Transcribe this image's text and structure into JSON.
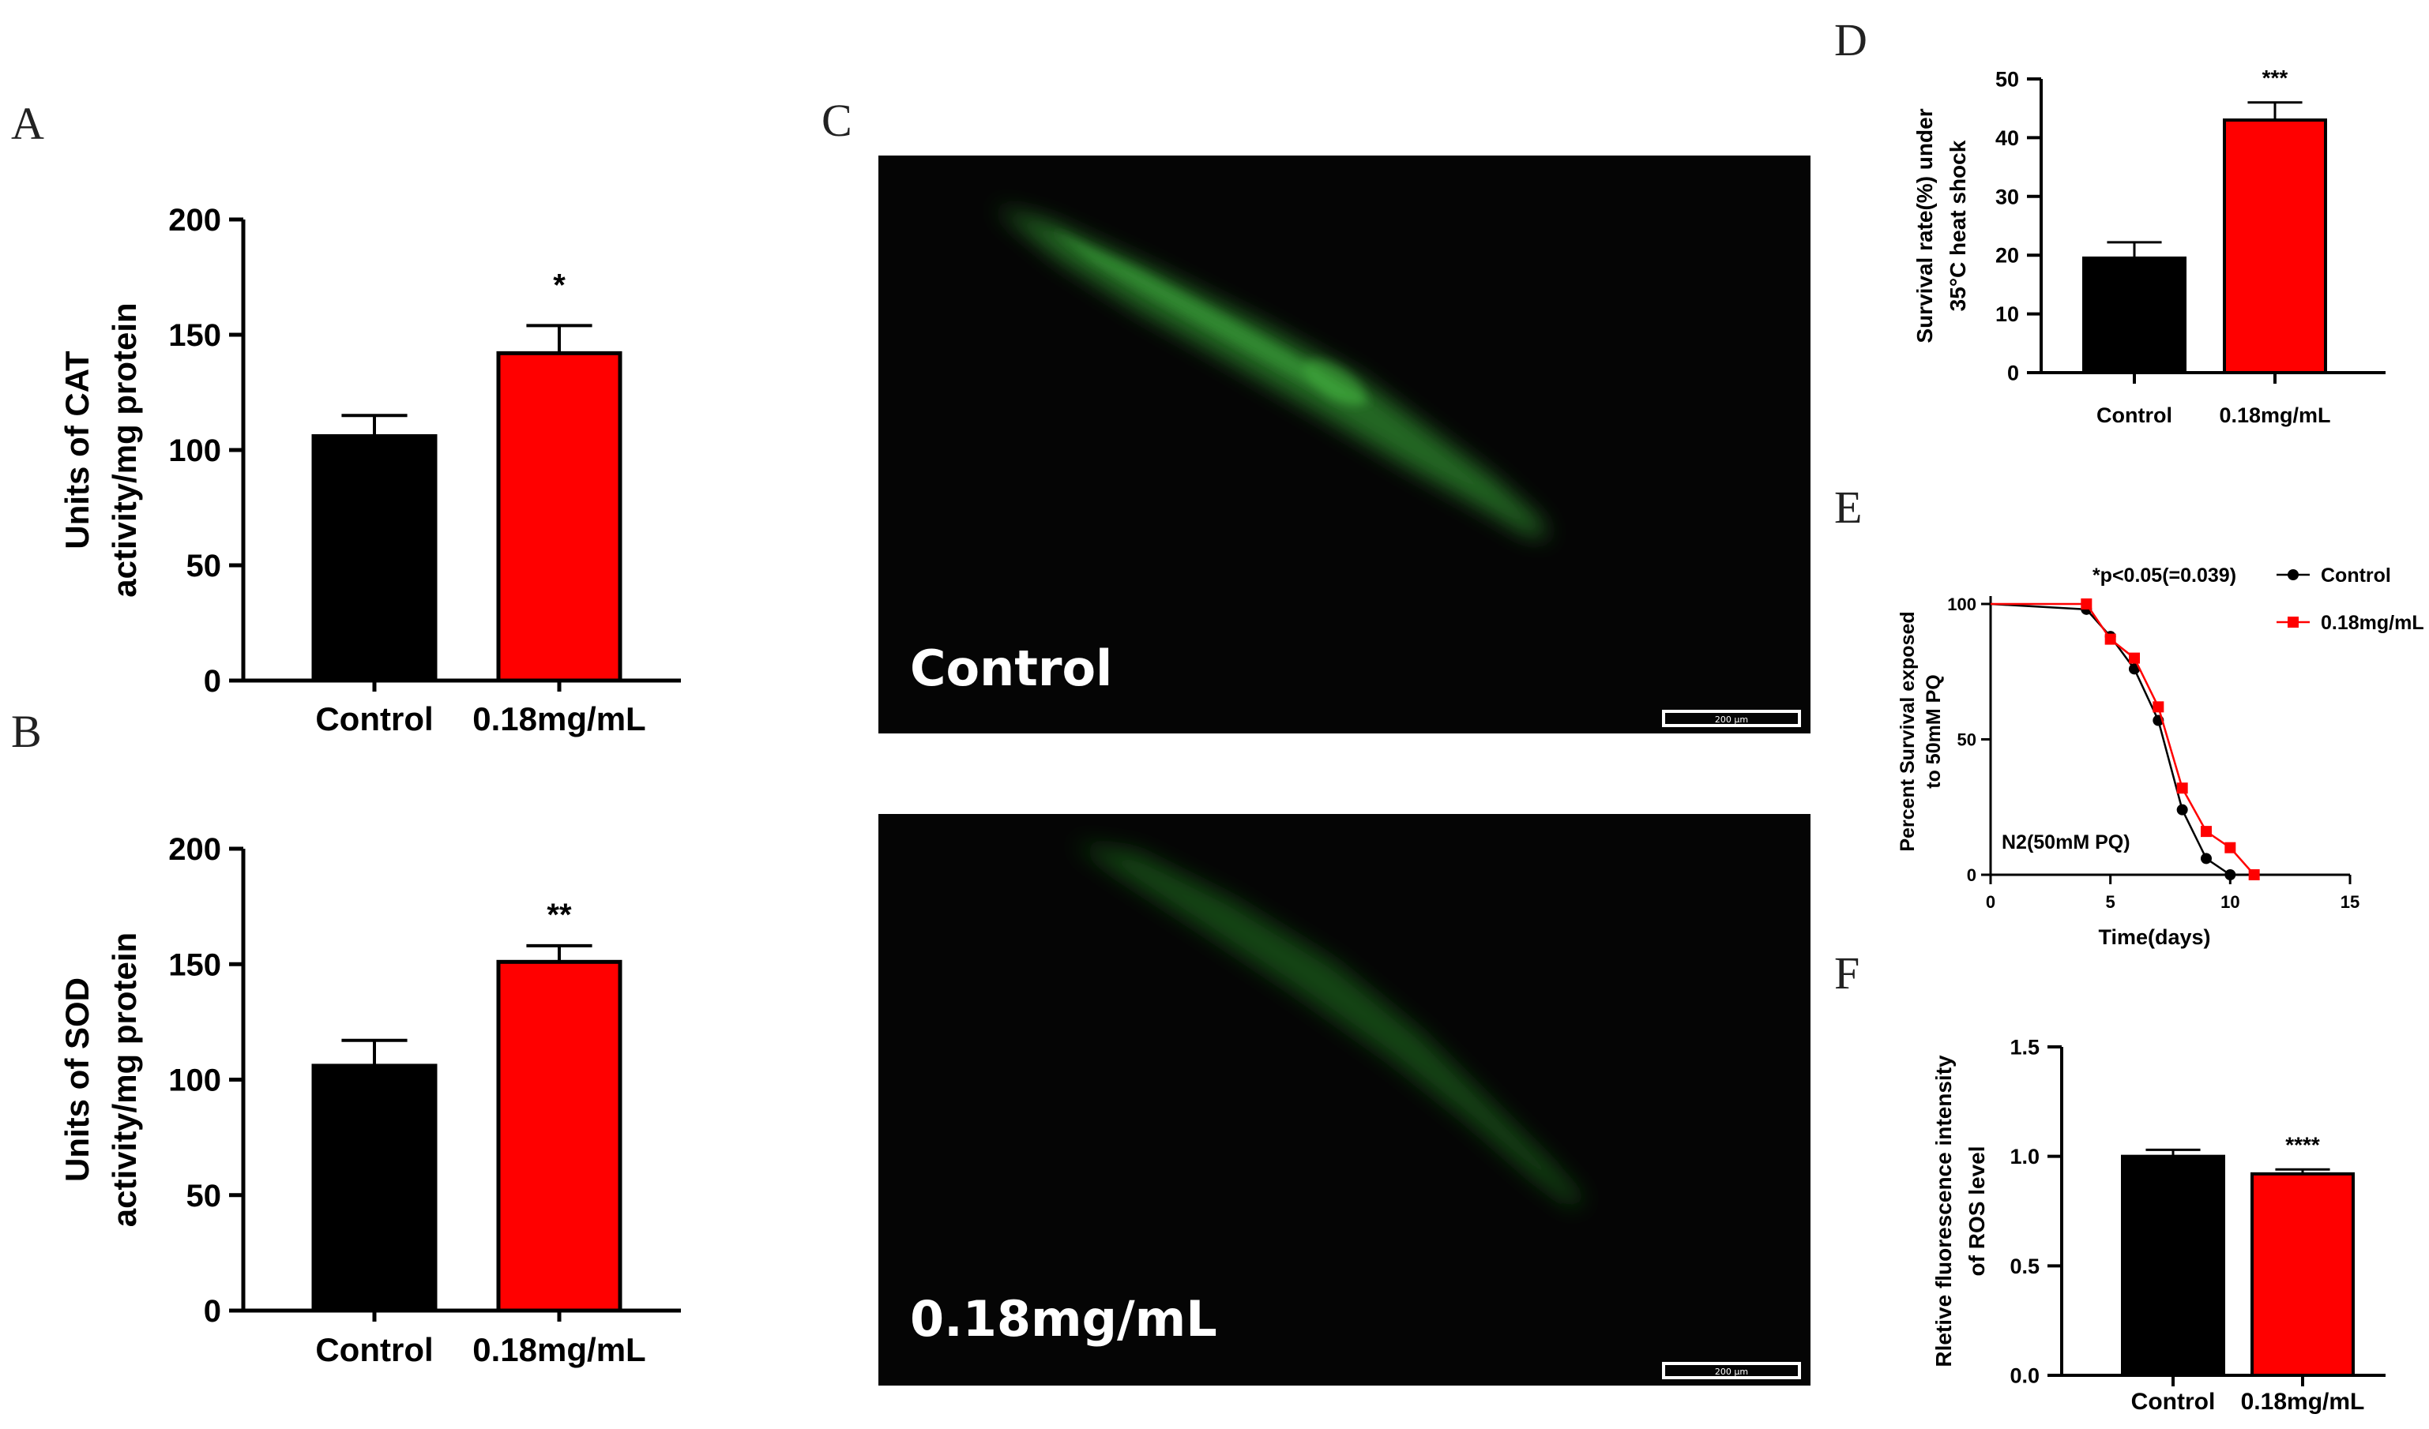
{
  "panels": {
    "A": "A",
    "B": "B",
    "C": "C",
    "D": "D",
    "E": "E",
    "F": "F"
  },
  "micrographs": {
    "top_label": "Control",
    "bottom_label": "0.18mg/mL",
    "scale_bar_text": "200 μm",
    "fluorescence_color": "#2f8a2c",
    "background_color": "#050505"
  },
  "chart_data": [
    {
      "id": "A",
      "type": "bar",
      "categories": [
        "Control",
        "0.18mg/mL"
      ],
      "values": [
        106,
        142
      ],
      "errors": [
        9,
        12
      ],
      "colors": [
        "#000000",
        "#ff0000"
      ],
      "significance": "*",
      "ylabel": [
        "Units of CAT",
        "activity/mg protein"
      ],
      "ylim": [
        0,
        200
      ],
      "yticks": [
        0,
        50,
        100,
        150,
        200
      ]
    },
    {
      "id": "B",
      "type": "bar",
      "categories": [
        "Control",
        "0.18mg/mL"
      ],
      "values": [
        106,
        151
      ],
      "errors": [
        11,
        7
      ],
      "colors": [
        "#000000",
        "#ff0000"
      ],
      "significance": "**",
      "ylabel": [
        "Units of SOD",
        "activity/mg protein"
      ],
      "ylim": [
        0,
        200
      ],
      "yticks": [
        0,
        50,
        100,
        150,
        200
      ]
    },
    {
      "id": "D",
      "type": "bar",
      "categories": [
        "Control",
        "0.18mg/mL"
      ],
      "values": [
        19.5,
        43
      ],
      "errors": [
        2.7,
        3
      ],
      "colors": [
        "#000000",
        "#ff0000"
      ],
      "significance": "***",
      "ylabel": [
        "Survival rate(%) under",
        "35°C heat shock"
      ],
      "ylim": [
        0,
        50
      ],
      "yticks": [
        0,
        10,
        20,
        30,
        40,
        50
      ]
    },
    {
      "id": "E",
      "type": "line",
      "annotation": "*p<0.05(=0.039)",
      "inner_label": "N2(50mM PQ)",
      "xlabel": "Time(days)",
      "ylabel": [
        "Percent  Survival exposed",
        "to 50mM PQ"
      ],
      "xlim": [
        0,
        15
      ],
      "ylim": [
        0,
        100
      ],
      "xticks": [
        0,
        5,
        10,
        15
      ],
      "yticks": [
        0,
        50,
        100
      ],
      "series": [
        {
          "name": "Control",
          "color": "#000000",
          "marker": "circle",
          "x": [
            0,
            4,
            5,
            6,
            7,
            8,
            9,
            10
          ],
          "y": [
            100,
            98,
            88,
            76,
            57,
            24,
            6,
            0
          ]
        },
        {
          "name": "0.18mg/mL",
          "color": "#ff0000",
          "marker": "square",
          "x": [
            0,
            4,
            5,
            6,
            7,
            8,
            9,
            10,
            11
          ],
          "y": [
            100,
            100,
            87,
            80,
            62,
            32,
            16,
            10,
            0
          ]
        }
      ]
    },
    {
      "id": "F",
      "type": "bar",
      "categories": [
        "Control",
        "0.18mg/mL"
      ],
      "values": [
        1.0,
        0.92
      ],
      "errors": [
        0.03,
        0.02
      ],
      "colors": [
        "#000000",
        "#ff0000"
      ],
      "significance": "****",
      "ylabel": [
        "Rletive fluorescence intensity",
        "of ROS level"
      ],
      "ylim": [
        0,
        1.5
      ],
      "yticks": [
        "0.0",
        "0.5",
        "1.0",
        "1.5"
      ]
    }
  ]
}
